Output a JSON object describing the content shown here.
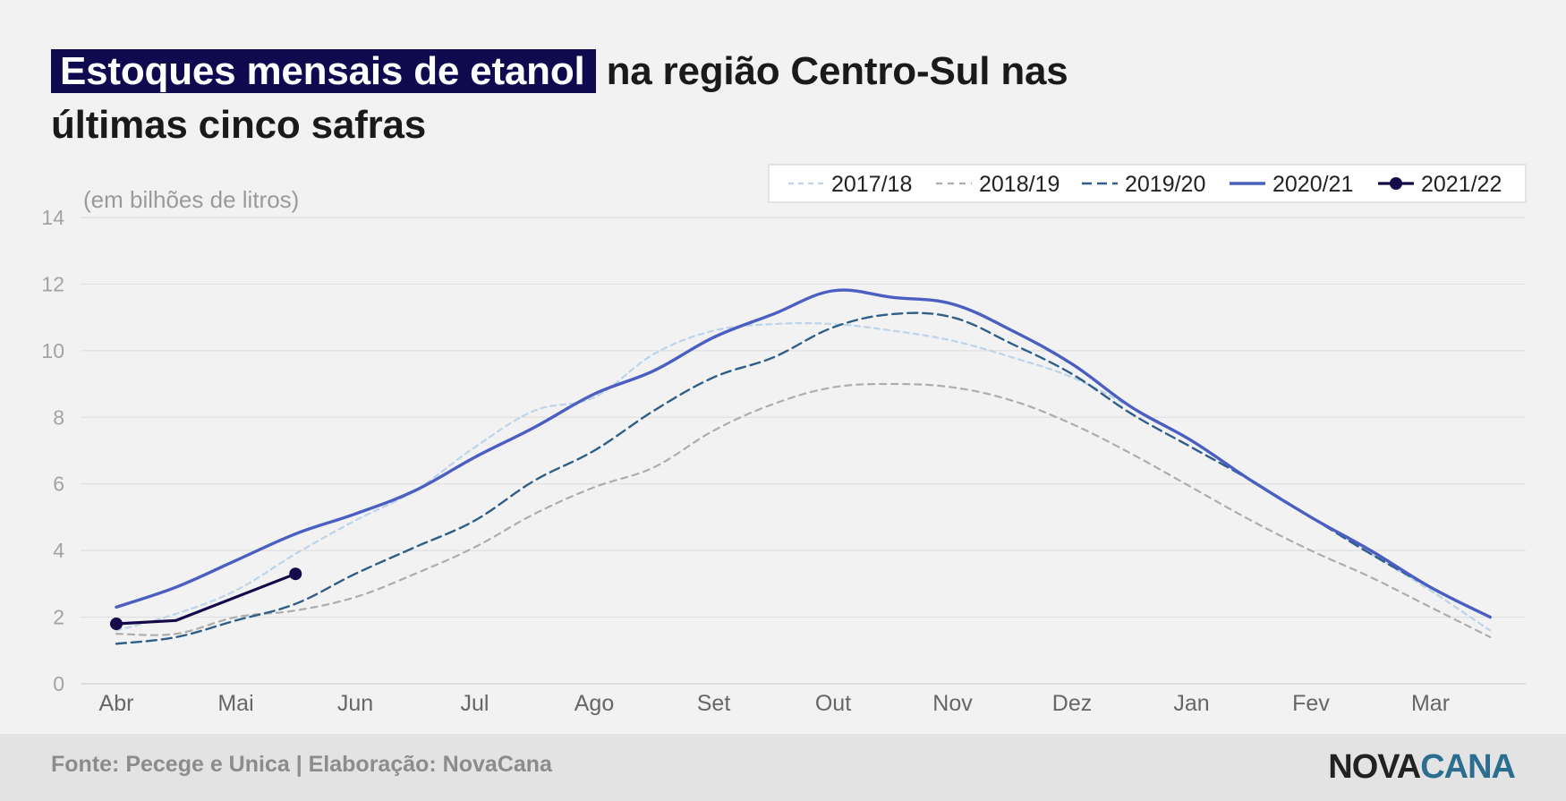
{
  "title": {
    "highlight": "Estoques mensais de etanol",
    "rest": " na região Centro-Sul nas últimas cinco safras"
  },
  "footer": {
    "source": "Fonte: Pecege e Unica  | Elaboração: NovaCana",
    "logo_part1": "NOVA",
    "logo_part2": "CANA"
  },
  "chart_data": {
    "type": "line",
    "ylabel": "(em bilhões de litros)",
    "ylim": [
      0,
      14
    ],
    "yticks": [
      0,
      2,
      4,
      6,
      8,
      10,
      12,
      14
    ],
    "categories": [
      "Abr",
      "Mai",
      "Jun",
      "Jul",
      "Ago",
      "Set",
      "Out",
      "Nov",
      "Dez",
      "Jan",
      "Fev",
      "Mar"
    ],
    "grid": true,
    "legend": "top-right",
    "series": [
      {
        "name": "2017/18",
        "color": "#bcd4ea",
        "style": "dashed-light",
        "x": [
          0,
          0.5,
          1,
          1.5,
          2,
          2.5,
          3,
          3.5,
          4,
          4.5,
          5,
          5.5,
          6,
          6.5,
          7,
          7.5,
          8,
          8.5,
          9,
          9.5,
          10,
          10.5,
          11,
          11.5
        ],
        "values": [
          1.6,
          2.1,
          2.8,
          3.9,
          4.9,
          5.8,
          7.1,
          8.2,
          8.6,
          9.9,
          10.6,
          10.8,
          10.8,
          10.6,
          10.3,
          9.8,
          9.2,
          8.3,
          7.3,
          6.1,
          5.0,
          3.9,
          2.8,
          1.6
        ]
      },
      {
        "name": "2018/19",
        "color": "#adadad",
        "style": "dashed",
        "x": [
          0,
          0.5,
          1,
          1.5,
          2,
          2.5,
          3,
          3.5,
          4,
          4.5,
          5,
          5.5,
          6,
          6.5,
          7,
          7.5,
          8,
          8.5,
          9,
          9.5,
          10,
          10.5,
          11,
          11.5
        ],
        "values": [
          1.5,
          1.5,
          2.0,
          2.2,
          2.6,
          3.3,
          4.1,
          5.1,
          5.9,
          6.5,
          7.6,
          8.4,
          8.9,
          9.0,
          8.9,
          8.5,
          7.8,
          6.9,
          5.9,
          4.9,
          4.0,
          3.2,
          2.3,
          1.4
        ]
      },
      {
        "name": "2019/20",
        "color": "#2f5f88",
        "style": "dashed-long",
        "x": [
          0,
          0.5,
          1,
          1.5,
          2,
          2.5,
          3,
          3.5,
          4,
          4.5,
          5,
          5.5,
          6,
          6.5,
          7,
          7.5,
          8,
          8.5,
          9,
          9.5,
          10,
          10.5,
          11,
          11.5
        ],
        "values": [
          1.2,
          1.4,
          1.9,
          2.4,
          3.3,
          4.1,
          4.9,
          6.1,
          7.0,
          8.2,
          9.2,
          9.8,
          10.7,
          11.1,
          11.0,
          10.2,
          9.3,
          8.1,
          7.1,
          6.1,
          5.0,
          3.9,
          2.9,
          2.0
        ]
      },
      {
        "name": "2020/21",
        "color": "#4a5fc1",
        "style": "solid",
        "x": [
          0,
          0.5,
          1,
          1.5,
          2,
          2.5,
          3,
          3.5,
          4,
          4.5,
          5,
          5.5,
          6,
          6.5,
          7,
          7.5,
          8,
          8.5,
          9,
          9.5,
          10,
          10.5,
          11,
          11.5
        ],
        "values": [
          2.3,
          2.9,
          3.7,
          4.5,
          5.1,
          5.8,
          6.8,
          7.7,
          8.7,
          9.4,
          10.4,
          11.1,
          11.8,
          11.6,
          11.4,
          10.6,
          9.6,
          8.3,
          7.3,
          6.1,
          5.0,
          4.0,
          2.9,
          2.0
        ]
      },
      {
        "name": "2021/22",
        "color": "#140a4a",
        "style": "solid-markers",
        "x": [
          0,
          0.5,
          1.5
        ],
        "values": [
          1.8,
          1.9,
          3.3
        ]
      }
    ]
  }
}
